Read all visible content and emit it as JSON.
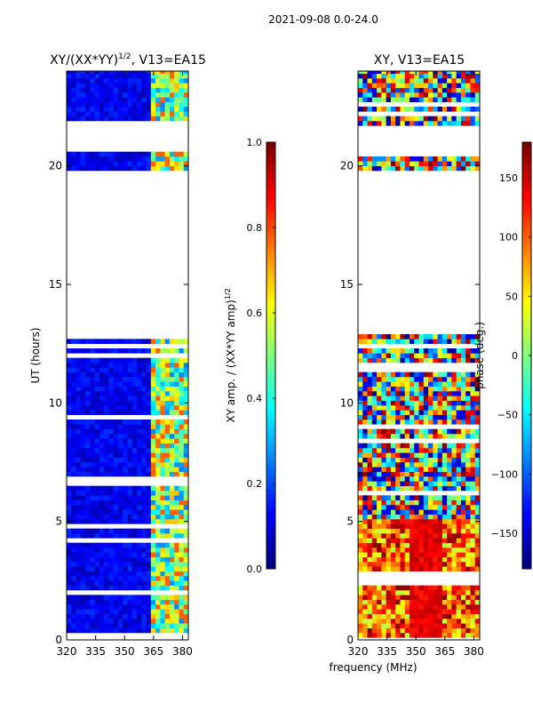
{
  "header": {
    "suptitle": "2021-09-08 0.0-24.0"
  },
  "colors": {
    "jet": [
      "#00007f",
      "#0000ff",
      "#007fff",
      "#00ffff",
      "#7fff7f",
      "#ffff00",
      "#ff7f00",
      "#ff0000",
      "#7f0000"
    ],
    "gap": "#ffffff",
    "frame": "#000000"
  },
  "chart_data": [
    {
      "type": "heatmap",
      "title_main": "XY/(XX*YY)",
      "title_sup": "1/2",
      "title_rest": ", V13=EA15",
      "xlabel": "",
      "ylabel": "UT (hours)",
      "xlim": [
        320,
        383
      ],
      "ylim": [
        0,
        24
      ],
      "xticks": [
        320,
        335,
        350,
        365,
        380
      ],
      "xtick_labels": [
        "320",
        "335",
        "350",
        "365",
        "380"
      ],
      "yticks": [
        0,
        5,
        10,
        15,
        20
      ],
      "ytick_labels": [
        "0",
        "5",
        "10",
        "15",
        "20"
      ],
      "data_ranges_hours": [
        [
          0.1,
          12.9
        ],
        [
          19.8,
          20.6
        ],
        [
          21.7,
          24.0
        ]
      ],
      "colorbar": {
        "label_main": "XY amp. / (XX*YY amp)",
        "label_sup": "1/2",
        "vmin": 0.0,
        "vmax": 1.0,
        "ticks": [
          0.0,
          0.2,
          0.4,
          0.6,
          0.8,
          1.0
        ],
        "tick_labels": [
          "0.0",
          "0.2",
          "0.4",
          "0.6",
          "0.8",
          "1.0"
        ]
      }
    },
    {
      "type": "heatmap",
      "title_main": "XY, V13=EA15",
      "xlabel": "frequency (MHz)",
      "ylabel": "",
      "xlim": [
        320,
        383
      ],
      "ylim": [
        0,
        24
      ],
      "xticks": [
        320,
        335,
        350,
        365,
        380
      ],
      "xtick_labels": [
        "320",
        "335",
        "350",
        "365",
        "380"
      ],
      "yticks": [
        0,
        5,
        10,
        15,
        20
      ],
      "ytick_labels": [
        "0",
        "5",
        "10",
        "15",
        "20"
      ],
      "data_ranges_hours": [
        [
          0.1,
          12.9
        ],
        [
          19.8,
          20.6
        ],
        [
          21.7,
          24.0
        ]
      ],
      "colorbar": {
        "label_main": "phase (deg.)",
        "vmin": -180,
        "vmax": 180,
        "ticks": [
          -150,
          -100,
          -50,
          0,
          50,
          100,
          150
        ],
        "tick_labels": [
          "−150",
          "−100",
          "−50",
          "0",
          "50",
          "100",
          "150"
        ]
      }
    }
  ]
}
